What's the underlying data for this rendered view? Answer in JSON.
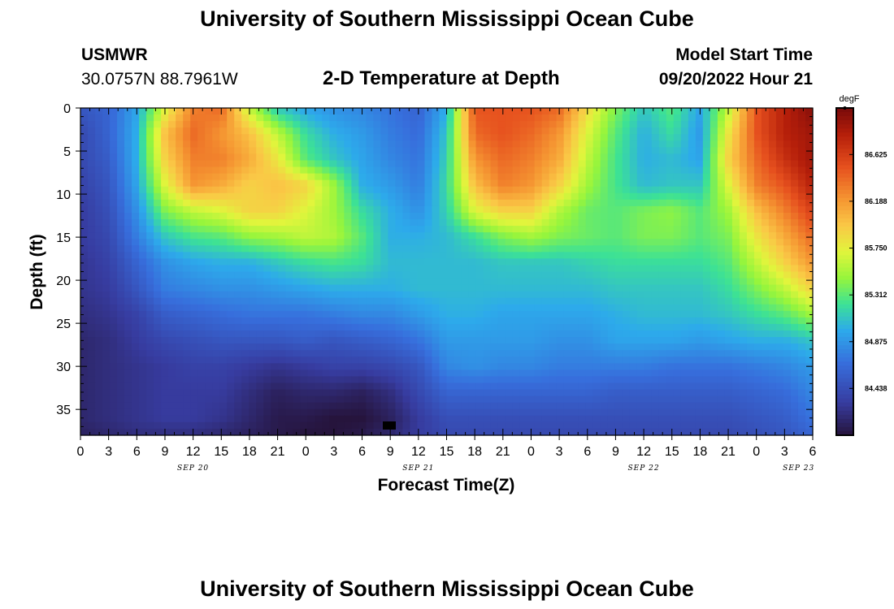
{
  "header": {
    "title": "University of Southern Mississippi Ocean Cube",
    "station": "USMWR",
    "coords": "30.0757N  88.7961W",
    "plot_title": "2-D Temperature at Depth",
    "model_label": "Model Start Time",
    "model_time": "09/20/2022 Hour 21"
  },
  "footer": {
    "title": "University of Southern Mississippi Ocean Cube"
  },
  "chart_data": {
    "type": "heatmap",
    "title": "2-D Temperature at Depth",
    "xlabel": "Forecast Time(Z)",
    "ylabel": "Depth (ft)",
    "x_tick_labels": [
      "0",
      "3",
      "6",
      "9",
      "12",
      "15",
      "18",
      "21",
      "0",
      "3",
      "6",
      "9",
      "12",
      "15",
      "18",
      "21",
      "0",
      "3",
      "6",
      "9",
      "12",
      "15",
      "18",
      "21",
      "0",
      "3",
      "6"
    ],
    "date_labels": [
      {
        "label": "SEP 20",
        "tick_index": 4
      },
      {
        "label": "SEP 21",
        "tick_index": 12
      },
      {
        "label": "SEP 22",
        "tick_index": 20
      },
      {
        "label": "SEP 23",
        "tick_index": 25.5
      }
    ],
    "y_ticks": [
      0,
      5,
      10,
      15,
      20,
      25,
      30,
      35
    ],
    "ylim": [
      0,
      38
    ],
    "xlim_hours": [
      0,
      78
    ],
    "colorbar": {
      "unit": "degF",
      "ticks": [
        "86.625",
        "86.188",
        "85.750",
        "85.312",
        "84.875",
        "84.438"
      ],
      "tick_values": [
        86.625,
        86.188,
        85.75,
        85.312,
        84.875,
        84.438
      ],
      "range": [
        84.0,
        87.06
      ]
    },
    "grid_depths_ft": [
      0,
      3,
      6,
      9,
      12,
      15,
      18,
      21,
      24,
      27,
      30,
      33,
      36,
      38
    ],
    "grid_hours": [
      0,
      3,
      6,
      9,
      12,
      15,
      18,
      21,
      24,
      27,
      30,
      33,
      36,
      39,
      42,
      45,
      48,
      51,
      54,
      57,
      60,
      63,
      66,
      69,
      72,
      75,
      78
    ],
    "temperature_degF": [
      [
        84.5,
        84.6,
        84.95,
        85.7,
        86.3,
        86.4,
        85.6,
        85.1,
        84.95,
        84.85,
        84.8,
        84.7,
        84.6,
        85.0,
        86.5,
        86.5,
        86.5,
        86.4,
        85.85,
        85.4,
        85.1,
        85.3,
        84.95,
        85.6,
        86.5,
        86.8,
        87.0
      ],
      [
        84.4,
        84.6,
        85.0,
        86.0,
        86.4,
        86.2,
        86.0,
        85.6,
        85.2,
        85.0,
        84.9,
        84.75,
        84.65,
        85.1,
        86.4,
        86.5,
        86.4,
        86.2,
        85.7,
        85.3,
        85.0,
        85.2,
        84.9,
        85.8,
        86.5,
        86.8,
        86.9
      ],
      [
        84.4,
        84.55,
        85.0,
        85.9,
        86.3,
        86.3,
        86.1,
        85.8,
        85.3,
        85.1,
        84.95,
        84.8,
        84.7,
        85.15,
        86.2,
        86.4,
        86.3,
        86.1,
        85.6,
        85.25,
        85.0,
        85.05,
        84.95,
        85.9,
        86.4,
        86.7,
        86.9
      ],
      [
        84.35,
        84.5,
        84.95,
        85.7,
        86.2,
        86.1,
        85.9,
        86.0,
        85.9,
        85.5,
        85.0,
        84.9,
        84.75,
        85.2,
        86.0,
        86.3,
        86.2,
        85.9,
        85.5,
        85.25,
        85.05,
        85.1,
        85.1,
        85.7,
        86.3,
        86.5,
        86.8
      ],
      [
        84.3,
        84.45,
        84.85,
        85.4,
        85.6,
        85.7,
        85.9,
        85.9,
        85.7,
        85.5,
        85.2,
        85.0,
        84.85,
        85.15,
        85.7,
        85.9,
        85.9,
        85.55,
        85.35,
        85.3,
        85.4,
        85.45,
        85.3,
        85.5,
        86.0,
        86.3,
        86.6
      ],
      [
        84.3,
        84.4,
        84.75,
        85.1,
        85.25,
        85.3,
        85.45,
        85.5,
        85.6,
        85.55,
        85.3,
        85.0,
        85.0,
        85.05,
        85.2,
        85.4,
        85.5,
        85.4,
        85.35,
        85.3,
        85.4,
        85.4,
        85.3,
        85.4,
        85.8,
        86.1,
        86.4
      ],
      [
        84.25,
        84.35,
        84.6,
        84.85,
        84.95,
        85.0,
        85.0,
        85.1,
        85.2,
        85.25,
        85.2,
        85.05,
        85.05,
        85.05,
        85.05,
        85.1,
        85.1,
        85.1,
        85.15,
        85.2,
        85.2,
        85.2,
        85.2,
        85.3,
        85.6,
        85.9,
        86.2
      ],
      [
        84.25,
        84.3,
        84.5,
        84.75,
        84.8,
        84.85,
        84.85,
        84.9,
        84.95,
        85.0,
        85.0,
        85.0,
        85.05,
        85.05,
        85.05,
        85.05,
        85.05,
        85.05,
        85.05,
        85.1,
        85.1,
        85.1,
        85.1,
        85.2,
        85.4,
        85.6,
        85.9
      ],
      [
        84.2,
        84.25,
        84.35,
        84.55,
        84.6,
        84.65,
        84.7,
        84.7,
        84.7,
        84.75,
        84.8,
        84.8,
        84.9,
        85.0,
        85.0,
        84.95,
        84.95,
        84.95,
        84.95,
        85.0,
        85.05,
        85.05,
        85.05,
        85.1,
        85.2,
        85.3,
        85.5
      ],
      [
        84.15,
        84.2,
        84.3,
        84.4,
        84.45,
        84.5,
        84.5,
        84.5,
        84.55,
        84.5,
        84.55,
        84.6,
        84.7,
        84.9,
        84.9,
        84.9,
        84.9,
        84.85,
        84.85,
        84.95,
        84.95,
        84.95,
        84.9,
        84.95,
        85.0,
        85.0,
        85.1
      ],
      [
        84.15,
        84.2,
        84.25,
        84.3,
        84.35,
        84.35,
        84.3,
        84.25,
        84.3,
        84.35,
        84.35,
        84.4,
        84.5,
        84.8,
        84.85,
        84.8,
        84.8,
        84.75,
        84.75,
        84.75,
        84.75,
        84.7,
        84.7,
        84.7,
        84.75,
        84.8,
        84.9
      ],
      [
        84.15,
        84.2,
        84.25,
        84.3,
        84.3,
        84.3,
        84.2,
        84.1,
        84.15,
        84.15,
        84.1,
        84.2,
        84.4,
        84.6,
        84.6,
        84.6,
        84.6,
        84.6,
        84.6,
        84.55,
        84.55,
        84.55,
        84.55,
        84.55,
        84.6,
        84.65,
        84.8
      ],
      [
        84.15,
        84.2,
        84.25,
        84.3,
        84.3,
        84.25,
        84.15,
        84.05,
        84.05,
        84.0,
        84.0,
        84.1,
        84.3,
        84.45,
        84.45,
        84.45,
        84.45,
        84.45,
        84.45,
        84.45,
        84.45,
        84.45,
        84.45,
        84.45,
        84.5,
        84.55,
        84.7
      ],
      [
        84.1,
        84.15,
        84.2,
        84.2,
        84.2,
        84.15,
        84.1,
        84.05,
        84.0,
        84.0,
        84.05,
        84.15,
        84.3,
        84.4,
        84.4,
        84.4,
        84.4,
        84.4,
        84.4,
        84.4,
        84.4,
        84.4,
        84.4,
        84.4,
        84.45,
        84.5,
        84.6
      ]
    ]
  }
}
